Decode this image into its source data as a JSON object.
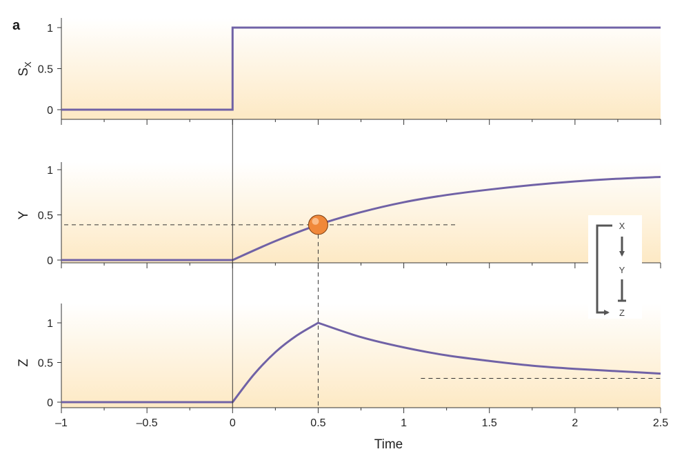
{
  "figure": {
    "panel_label": "a"
  },
  "colors": {
    "curve": "#7062a6",
    "marker": "#f0883a",
    "background_gradient_top": "#ffffff",
    "background_gradient_bottom": "#fde9c4",
    "axis": "#333333"
  },
  "chart_data": [
    {
      "type": "line",
      "ylabel_main": "S",
      "ylabel_sub": "X",
      "xlim": [
        -1,
        2.5
      ],
      "ylim": [
        0,
        1
      ],
      "yticks": [
        {
          "value": 0,
          "label": "0"
        },
        {
          "value": 0.5,
          "label": "0.5"
        },
        {
          "value": 1,
          "label": "1"
        }
      ],
      "series": [
        {
          "x": [
            -1,
            0,
            0,
            2.5
          ],
          "y": [
            0,
            0,
            1,
            1
          ]
        }
      ]
    },
    {
      "type": "line",
      "ylabel_main": "Y",
      "xlim": [
        -1,
        2.5
      ],
      "ylim": [
        0,
        1
      ],
      "yticks": [
        {
          "value": 0,
          "label": "0"
        },
        {
          "value": 0.5,
          "label": "0.5"
        },
        {
          "value": 1,
          "label": "1"
        }
      ],
      "series": [
        {
          "x": [
            -1,
            0,
            0.25,
            0.5,
            0.75,
            1,
            1.25,
            1.5,
            1.75,
            2,
            2.25,
            2.5
          ],
          "y": [
            0,
            0,
            0.21,
            0.39,
            0.53,
            0.64,
            0.72,
            0.78,
            0.83,
            0.87,
            0.9,
            0.92
          ]
        }
      ],
      "threshold": {
        "y": 0.39,
        "x_start": -1,
        "x_end": 1.3
      },
      "marker": {
        "x": 0.5,
        "y": 0.39
      }
    },
    {
      "type": "line",
      "ylabel_main": "Z",
      "xlabel": "Time",
      "xlim": [
        -1,
        2.5
      ],
      "ylim": [
        0,
        1
      ],
      "yticks": [
        {
          "value": 0,
          "label": "0"
        },
        {
          "value": 0.5,
          "label": "0.5"
        },
        {
          "value": 1,
          "label": "1"
        }
      ],
      "xticks": [
        {
          "value": -1,
          "label": "–1"
        },
        {
          "value": -0.5,
          "label": "–0.5"
        },
        {
          "value": 0,
          "label": "0"
        },
        {
          "value": 0.5,
          "label": "0.5"
        },
        {
          "value": 1,
          "label": "1"
        },
        {
          "value": 1.5,
          "label": "1.5"
        },
        {
          "value": 2,
          "label": "2"
        },
        {
          "value": 2.5,
          "label": "2.5"
        }
      ],
      "series": [
        {
          "x": [
            -1,
            0,
            0.125,
            0.25,
            0.375,
            0.5,
            0.75,
            1,
            1.25,
            1.5,
            1.75,
            2,
            2.25,
            2.5
          ],
          "y": [
            0,
            0,
            0.35,
            0.63,
            0.84,
            1,
            0.82,
            0.69,
            0.59,
            0.52,
            0.46,
            0.42,
            0.39,
            0.36
          ]
        }
      ],
      "steady_state": {
        "y": 0.3,
        "x_start": 1.1,
        "x_end": 2.5
      },
      "guide_x": 0.5
    }
  ],
  "inset": {
    "nodes": [
      "X",
      "Y",
      "Z"
    ]
  }
}
